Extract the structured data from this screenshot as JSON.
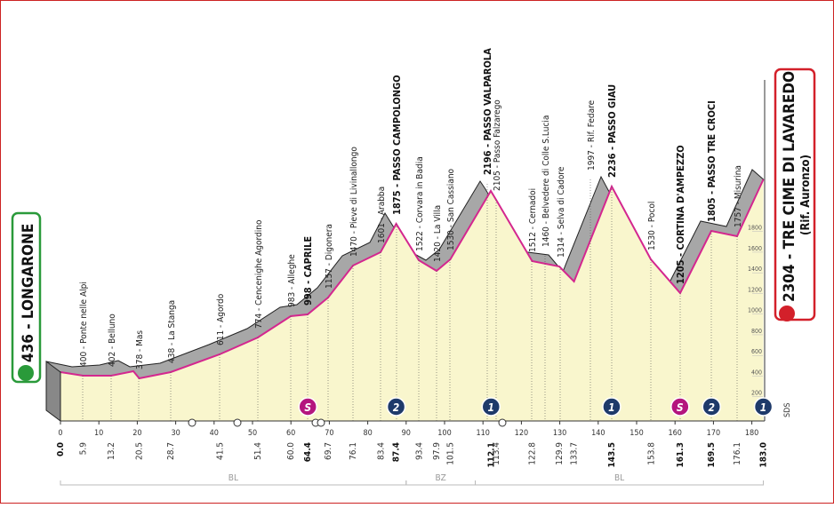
{
  "profile": {
    "start": "436 - LONGARONE",
    "finish": "2304 - TRE CIME DI LAVAREDO",
    "finish_sub": "(Rif. Auronzo)",
    "waypoints": [
      {
        "label": "400 - Ponte nelle Alpi"
      },
      {
        "label": "402 - Belluno"
      },
      {
        "label": "378 - Mas"
      },
      {
        "label": "438 - La Stanga"
      },
      {
        "label": "611 - Agordo"
      },
      {
        "label": "774 - Cencenighe Agordino"
      },
      {
        "label": "983 - Alleghe"
      },
      {
        "label": "998 - CAPRILE",
        "bold": true
      },
      {
        "label": "1157 - Digonera"
      },
      {
        "label": "1470 - Pieve di Livinallongo"
      },
      {
        "label": "1601 - Arabba"
      },
      {
        "label": "1875 - PASSO CAMPOLONGO",
        "bold": true
      },
      {
        "label": "1522 - Corvara in Badia"
      },
      {
        "label": "1420 - La Villa"
      },
      {
        "label": "1530 - San Cassiano"
      },
      {
        "label": "2196 - PASSO VALPAROLA",
        "bold": true
      },
      {
        "label": "2105 - Passo Falzarego"
      },
      {
        "label": "1512 - Cernadoi"
      },
      {
        "label": "1460 - Belvedere di Colle S.Lucia"
      },
      {
        "label": "1314 - Selva di Cadore"
      },
      {
        "label": "1997 - Rif. Fedare"
      },
      {
        "label": "2236 - PASSO GIAU",
        "bold": true
      },
      {
        "label": "1530 - Pocol"
      },
      {
        "label": "1205 - CORTINA D'AMPEZZO",
        "bold": true
      },
      {
        "label": "1805 - PASSO TRE CROCI",
        "bold": true
      },
      {
        "label": "1757 - Misurina"
      }
    ],
    "km_ticks": [
      0,
      10,
      20,
      30,
      40,
      50,
      60,
      70,
      80,
      90,
      100,
      110,
      120,
      130,
      140,
      150,
      160,
      170,
      180
    ],
    "distances": [
      {
        "value": 0,
        "label": "0.0",
        "bold": true
      },
      {
        "value": 5.9,
        "label": "5.9"
      },
      {
        "value": 13.2,
        "label": "13.2"
      },
      {
        "value": 20.5,
        "label": "20.5"
      },
      {
        "value": 28.7,
        "label": "28.7"
      },
      {
        "value": 41.5,
        "label": "41.5"
      },
      {
        "value": 51.4,
        "label": "51.4"
      },
      {
        "value": 60,
        "label": "60.0"
      },
      {
        "value": 64.4,
        "label": "64.4",
        "bold": true
      },
      {
        "value": 69.7,
        "label": "69.7"
      },
      {
        "value": 76.1,
        "label": "76.1"
      },
      {
        "value": 83.4,
        "label": "83.4"
      },
      {
        "value": 87.4,
        "label": "87.4",
        "bold": true
      },
      {
        "value": 93.4,
        "label": "93.4"
      },
      {
        "value": 97.9,
        "label": "97.9"
      },
      {
        "value": 101.5,
        "label": "101.5"
      },
      {
        "value": 112.1,
        "label": "112.1",
        "bold": true
      },
      {
        "value": 113.4,
        "label": "113.4"
      },
      {
        "value": 122.8,
        "label": "122.8"
      },
      {
        "value": 129.9,
        "label": "129.9"
      },
      {
        "value": 133.7,
        "label": "133.7"
      },
      {
        "value": 143.5,
        "label": "143.5",
        "bold": true
      },
      {
        "value": 153.8,
        "label": "153.8"
      },
      {
        "value": 161.3,
        "label": "161.3",
        "bold": true
      },
      {
        "value": 169.5,
        "label": "169.5",
        "bold": true
      },
      {
        "value": 176.1,
        "label": "176.1"
      },
      {
        "value": 183,
        "label": "183.0",
        "bold": true
      }
    ],
    "elevation_ticks": [
      200,
      400,
      600,
      800,
      1000,
      1200,
      1400,
      1600,
      1800
    ],
    "markers": [
      {
        "value": 64.4,
        "label": "S",
        "color": "#b4157e"
      },
      {
        "value": 87.4,
        "label": "2",
        "color": "#1e3a6a"
      },
      {
        "value": 112.1,
        "label": "1",
        "color": "#1e3a6a"
      },
      {
        "value": 143.5,
        "label": "1",
        "color": "#1e3a6a"
      },
      {
        "value": 161.3,
        "label": "S",
        "color": "#b4157e"
      },
      {
        "value": 169.5,
        "label": "2",
        "color": "#1e3a6a"
      },
      {
        "value": 183,
        "label": "1",
        "color": "#1e3a6a"
      }
    ],
    "regions": [
      {
        "label": "BL",
        "from": 0,
        "to": 90
      },
      {
        "label": "BZ",
        "from": 90,
        "to": 108
      },
      {
        "label": "BL",
        "from": 108,
        "to": 183
      }
    ],
    "credit": "SDS"
  }
}
